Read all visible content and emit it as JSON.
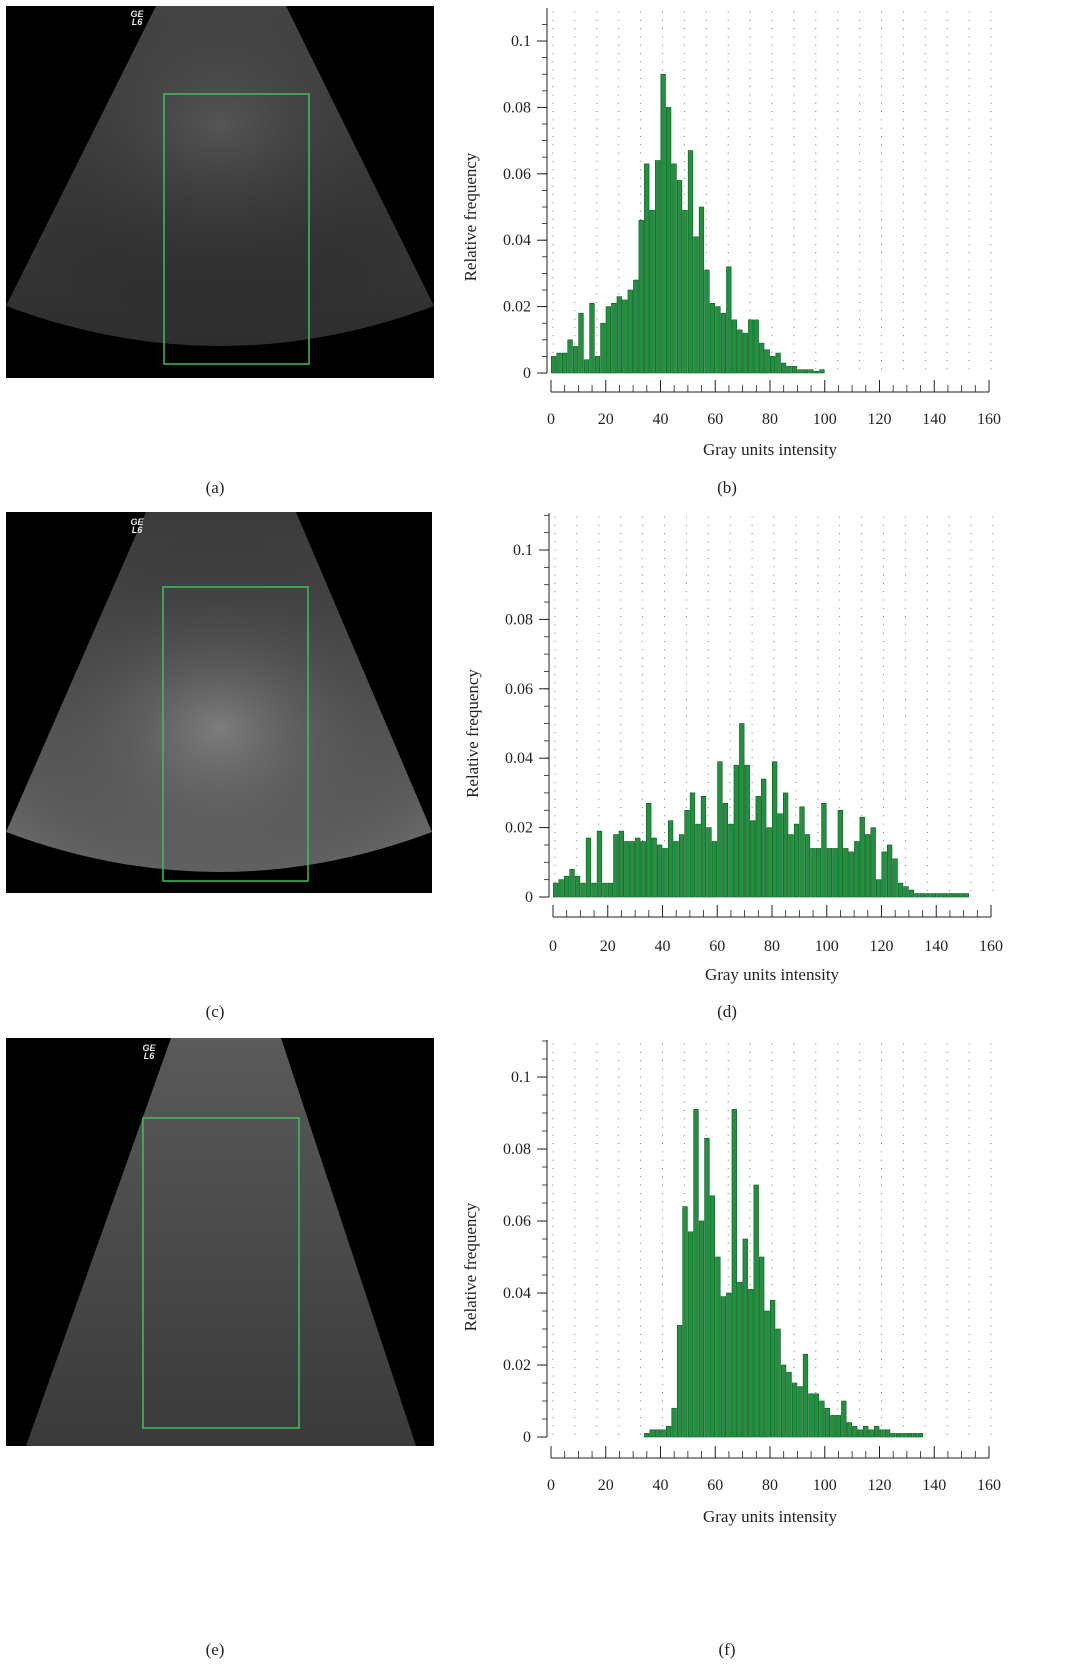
{
  "ultrasound_logo": "GE L6",
  "captions": [
    "(a)",
    "(b)",
    "(c)",
    "(d)",
    "(e)",
    "(f)"
  ],
  "colors": {
    "bar": "#23903f",
    "bar_edge": "#0e5a26",
    "roi_box": "#3fbf5a",
    "axis": "#231f20"
  },
  "chart_data": [
    {
      "type": "bar",
      "panel": "(b)",
      "xlabel": "Gray units intensity",
      "ylabel": "Relative frequency",
      "xlim": [
        0,
        160
      ],
      "ylim": [
        0,
        0.1
      ],
      "xticks": [
        0,
        20,
        40,
        60,
        80,
        100,
        120,
        140,
        160
      ],
      "yticks": [
        0,
        0.02,
        0.04,
        0.06,
        0.08,
        0.1
      ],
      "ytick_labels": [
        "0",
        "0.02",
        "0.04",
        "0.06",
        "0.08",
        "0.1"
      ],
      "bin_width": 2,
      "x": [
        0,
        2,
        4,
        6,
        8,
        10,
        12,
        14,
        16,
        18,
        20,
        22,
        24,
        26,
        28,
        30,
        32,
        34,
        36,
        38,
        40,
        42,
        44,
        46,
        48,
        50,
        52,
        54,
        56,
        58,
        60,
        62,
        64,
        66,
        68,
        70,
        72,
        74,
        76,
        78,
        80,
        82,
        84,
        86,
        88,
        90,
        92,
        94,
        96,
        98,
        100,
        102,
        104,
        106,
        108,
        110
      ],
      "values": [
        0.005,
        0.006,
        0.006,
        0.01,
        0.008,
        0.018,
        0.004,
        0.021,
        0.005,
        0.015,
        0.02,
        0.021,
        0.023,
        0.022,
        0.025,
        0.028,
        0.046,
        0.063,
        0.049,
        0.064,
        0.09,
        0.08,
        0.063,
        0.058,
        0.049,
        0.067,
        0.041,
        0.05,
        0.031,
        0.021,
        0.02,
        0.018,
        0.032,
        0.016,
        0.013,
        0.012,
        0.016,
        0.016,
        0.009,
        0.007,
        0.005,
        0.006,
        0.003,
        0.002,
        0.002,
        0.001,
        0.001,
        0.001,
        0.0005,
        0.001,
        0,
        0,
        0,
        0,
        0,
        0
      ]
    },
    {
      "type": "bar",
      "panel": "(d)",
      "xlabel": "Gray units intensity",
      "ylabel": "Relative frequency",
      "xlim": [
        0,
        160
      ],
      "ylim": [
        0,
        0.1
      ],
      "xticks": [
        0,
        20,
        40,
        60,
        80,
        100,
        120,
        140,
        160
      ],
      "yticks": [
        0,
        0.02,
        0.04,
        0.06,
        0.08,
        0.1
      ],
      "ytick_labels": [
        "0",
        "0.02",
        "0.04",
        "0.06",
        "0.08",
        "0.1"
      ],
      "bin_width": 2,
      "x": [
        0,
        2,
        4,
        6,
        8,
        10,
        12,
        14,
        16,
        18,
        20,
        22,
        24,
        26,
        28,
        30,
        32,
        34,
        36,
        38,
        40,
        42,
        44,
        46,
        48,
        50,
        52,
        54,
        56,
        58,
        60,
        62,
        64,
        66,
        68,
        70,
        72,
        74,
        76,
        78,
        80,
        82,
        84,
        86,
        88,
        90,
        92,
        94,
        96,
        98,
        100,
        102,
        104,
        106,
        108,
        110,
        112,
        114,
        116,
        118,
        120,
        122,
        124,
        126,
        128,
        130,
        132,
        134,
        136,
        138,
        140,
        142,
        144,
        146,
        148,
        150
      ],
      "values": [
        0.004,
        0.005,
        0.006,
        0.008,
        0.006,
        0.004,
        0.017,
        0.004,
        0.019,
        0.004,
        0.004,
        0.018,
        0.019,
        0.016,
        0.016,
        0.017,
        0.016,
        0.027,
        0.017,
        0.015,
        0.014,
        0.022,
        0.016,
        0.018,
        0.025,
        0.03,
        0.021,
        0.029,
        0.02,
        0.016,
        0.039,
        0.027,
        0.021,
        0.038,
        0.05,
        0.038,
        0.022,
        0.029,
        0.034,
        0.02,
        0.039,
        0.024,
        0.03,
        0.018,
        0.021,
        0.026,
        0.018,
        0.014,
        0.014,
        0.027,
        0.014,
        0.014,
        0.025,
        0.014,
        0.013,
        0.016,
        0.023,
        0.018,
        0.02,
        0.005,
        0.013,
        0.015,
        0.011,
        0.004,
        0.003,
        0.002,
        0.001,
        0.001,
        0.001,
        0.001,
        0.001,
        0.001,
        0.001,
        0.001,
        0.001,
        0.001
      ]
    },
    {
      "type": "bar",
      "panel": "(f)",
      "xlabel": "Gray units intensity",
      "ylabel": "Relative frequency",
      "xlim": [
        0,
        160
      ],
      "ylim": [
        0,
        0.1
      ],
      "xticks": [
        0,
        20,
        40,
        60,
        80,
        100,
        120,
        140,
        160
      ],
      "yticks": [
        0,
        0.02,
        0.04,
        0.06,
        0.08,
        0.1
      ],
      "ytick_labels": [
        "0",
        "0.02",
        "0.04",
        "0.06",
        "0.08",
        "0.1"
      ],
      "bin_width": 2,
      "x": [
        34,
        36,
        38,
        40,
        42,
        44,
        46,
        48,
        50,
        52,
        54,
        56,
        58,
        60,
        62,
        64,
        66,
        68,
        70,
        72,
        74,
        76,
        78,
        80,
        82,
        84,
        86,
        88,
        90,
        92,
        94,
        96,
        98,
        100,
        102,
        104,
        106,
        108,
        110,
        112,
        114,
        116,
        118,
        120,
        122,
        124,
        126,
        128,
        130,
        132,
        134
      ],
      "values": [
        0.001,
        0.002,
        0.002,
        0.002,
        0.003,
        0.008,
        0.031,
        0.064,
        0.057,
        0.091,
        0.06,
        0.083,
        0.067,
        0.05,
        0.039,
        0.04,
        0.091,
        0.043,
        0.055,
        0.041,
        0.07,
        0.05,
        0.035,
        0.038,
        0.03,
        0.02,
        0.018,
        0.015,
        0.014,
        0.023,
        0.012,
        0.012,
        0.01,
        0.008,
        0.006,
        0.006,
        0.01,
        0.004,
        0.003,
        0.002,
        0.003,
        0.002,
        0.003,
        0.002,
        0.002,
        0.001,
        0.001,
        0.001,
        0.001,
        0.001,
        0.001
      ]
    }
  ]
}
